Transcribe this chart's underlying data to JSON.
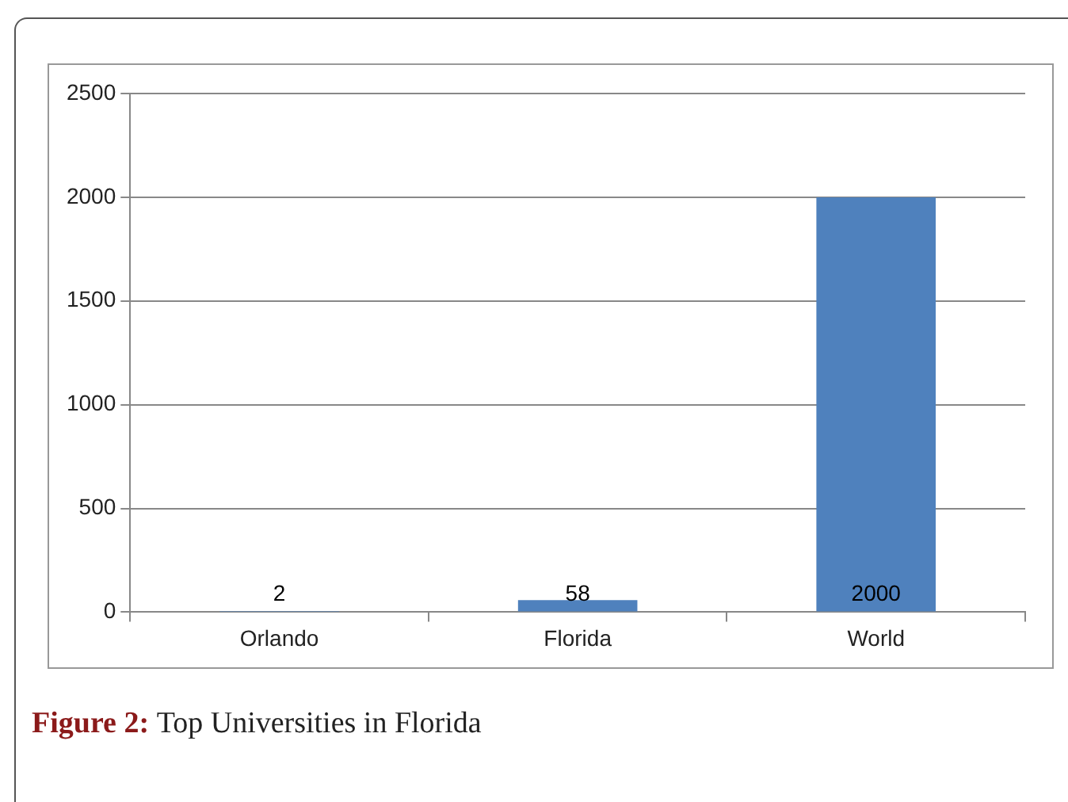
{
  "chart_data": {
    "type": "bar",
    "categories": [
      "Orlando",
      "Florida",
      "World"
    ],
    "values": [
      2,
      58,
      2000
    ],
    "color": "#4f81bd",
    "ylim": [
      0,
      2500
    ],
    "yticks": [
      0,
      500,
      1000,
      1500,
      2000,
      2500
    ],
    "grid": "y",
    "data_labels": true,
    "legend": false,
    "annotations": [
      "Figure 2:",
      "Top Universities in Florida"
    ]
  }
}
